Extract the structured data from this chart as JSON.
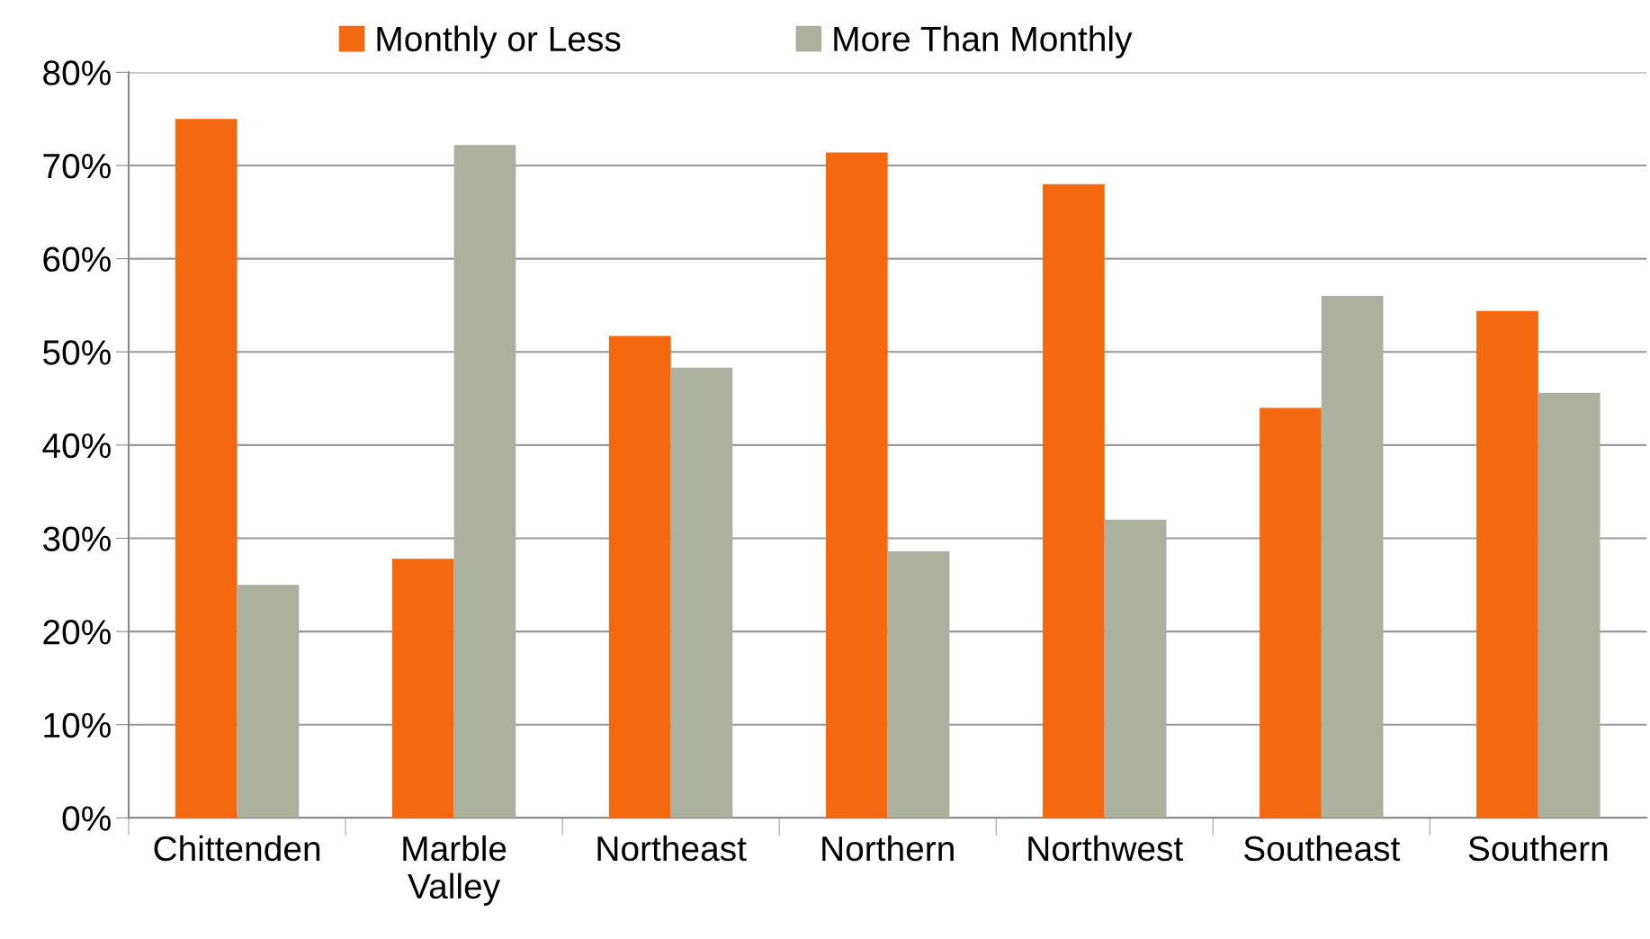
{
  "chart_data": {
    "type": "bar",
    "categories": [
      "Chittenden",
      "Marble\nValley",
      "Northeast",
      "Northern",
      "Northwest",
      "Southeast",
      "Southern"
    ],
    "series": [
      {
        "name": "Monthly or Less",
        "color": "#f4690f",
        "values": [
          75,
          27.8,
          51.7,
          71.4,
          68,
          44,
          54.4
        ]
      },
      {
        "name": "More Than Monthly",
        "color": "#abb19e",
        "values": [
          25,
          72.2,
          48.3,
          28.6,
          32,
          56,
          45.6
        ]
      }
    ],
    "ylim": [
      0,
      80
    ],
    "yticks": [
      {
        "value": 0,
        "label": "0%"
      },
      {
        "value": 10,
        "label": "10%"
      },
      {
        "value": 20,
        "label": "20%"
      },
      {
        "value": 30,
        "label": "30%"
      },
      {
        "value": 40,
        "label": "40%"
      },
      {
        "value": 50,
        "label": "50%"
      },
      {
        "value": 60,
        "label": "60%"
      },
      {
        "value": 70,
        "label": "70%"
      },
      {
        "value": 80,
        "label": "80%"
      }
    ],
    "grid": "y",
    "legend": "top"
  }
}
